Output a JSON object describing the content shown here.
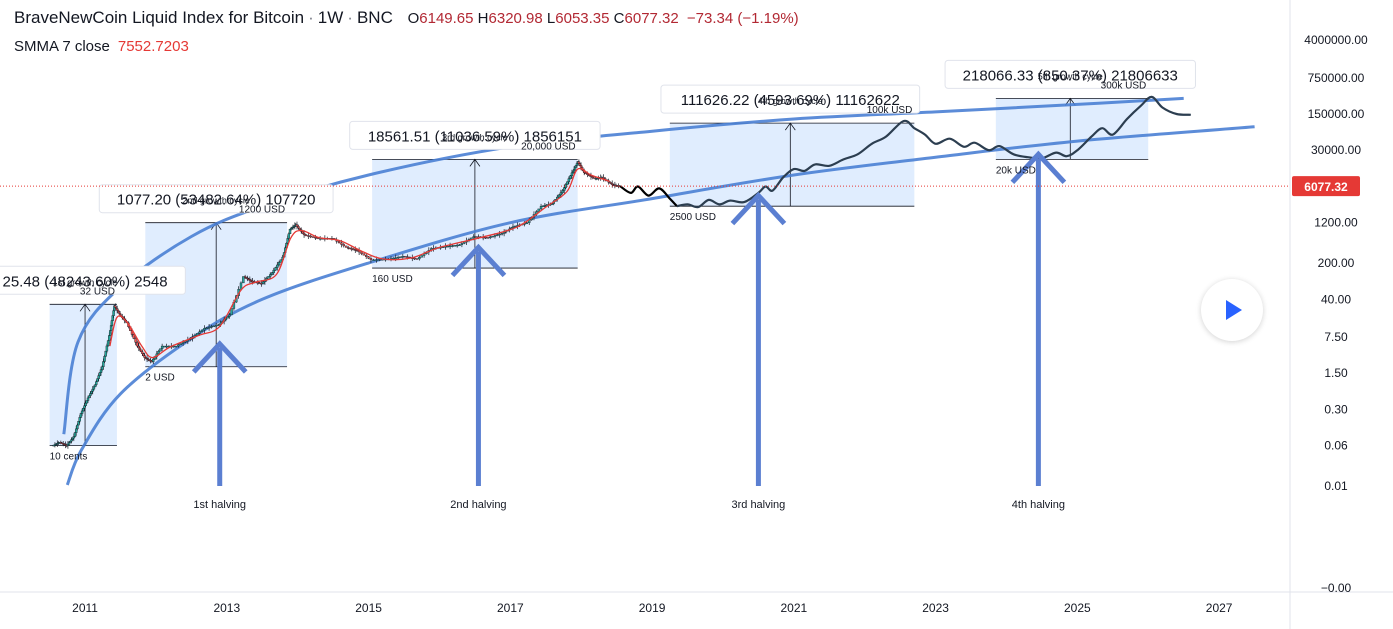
{
  "header": {
    "symbol": "BraveNewCoin Liquid Index for Bitcoin",
    "interval": "1W",
    "exchange": "BNC",
    "open_label": "O",
    "open": "6149.65",
    "high_label": "H",
    "high": "6320.98",
    "low_label": "L",
    "low": "6053.35",
    "close_label": "C",
    "close": "6077.32",
    "change": "−73.34 (−1.19%)"
  },
  "indicator": {
    "name": "SMMA 7 close",
    "value": "7552.7203"
  },
  "colors": {
    "accent_blue": "#4a80d4",
    "candle_up": "#26a69a",
    "candle_down": "#ef5350",
    "smma": "#e53935",
    "box_fill": "#dbeafe",
    "price_tag": "#e53935"
  },
  "play_icon": "play-icon",
  "chart_data": {
    "type": "candlestick",
    "y_scale": "log",
    "x_range": [
      2009.8,
      2028.0
    ],
    "y_axis_labels": [
      "4000000.00",
      "750000.00",
      "150000.00",
      "30000.00",
      "6077.32",
      "1200.00",
      "200.00",
      "40.00",
      "7.50",
      "1.50",
      "0.30",
      "0.06",
      "0.01",
      "−0.00"
    ],
    "y_axis_values": [
      4000000,
      750000,
      150000,
      30000,
      6077.32,
      1200,
      200,
      40,
      7.5,
      1.5,
      0.3,
      0.06,
      0.01,
      0.0001
    ],
    "x_tick_labels": [
      "2011",
      "2013",
      "2015",
      "2017",
      "2019",
      "2021",
      "2023",
      "2025",
      "2027"
    ],
    "x_tick_values": [
      2011,
      2013,
      2015,
      2017,
      2019,
      2021,
      2023,
      2025,
      2027
    ],
    "current_price": 6077.32,
    "current_price_label": "6077.32",
    "price_path": [
      [
        2010.55,
        0.06
      ],
      [
        2010.65,
        0.07
      ],
      [
        2010.75,
        0.06
      ],
      [
        2010.85,
        0.09
      ],
      [
        2010.95,
        0.25
      ],
      [
        2011.05,
        0.5
      ],
      [
        2011.15,
        0.9
      ],
      [
        2011.25,
        2
      ],
      [
        2011.35,
        8
      ],
      [
        2011.42,
        30
      ],
      [
        2011.5,
        20
      ],
      [
        2011.6,
        14
      ],
      [
        2011.75,
        5
      ],
      [
        2011.85,
        3
      ],
      [
        2011.95,
        2.5
      ],
      [
        2012.1,
        5
      ],
      [
        2012.3,
        5
      ],
      [
        2012.5,
        7
      ],
      [
        2012.7,
        11
      ],
      [
        2012.9,
        13
      ],
      [
        2013.05,
        20
      ],
      [
        2013.25,
        110
      ],
      [
        2013.35,
        90
      ],
      [
        2013.5,
        80
      ],
      [
        2013.65,
        130
      ],
      [
        2013.8,
        260
      ],
      [
        2013.9,
        900
      ],
      [
        2013.98,
        1100
      ],
      [
        2014.1,
        700
      ],
      [
        2014.3,
        600
      ],
      [
        2014.5,
        600
      ],
      [
        2014.7,
        400
      ],
      [
        2014.85,
        350
      ],
      [
        2015.05,
        230
      ],
      [
        2015.3,
        240
      ],
      [
        2015.5,
        270
      ],
      [
        2015.7,
        240
      ],
      [
        2015.9,
        380
      ],
      [
        2016.1,
        420
      ],
      [
        2016.3,
        450
      ],
      [
        2016.5,
        650
      ],
      [
        2016.7,
        620
      ],
      [
        2016.9,
        750
      ],
      [
        2017.05,
        1000
      ],
      [
        2017.25,
        1200
      ],
      [
        2017.45,
        2500
      ],
      [
        2017.6,
        2800
      ],
      [
        2017.75,
        5000
      ],
      [
        2017.88,
        11000
      ],
      [
        2017.96,
        18000
      ],
      [
        2018.05,
        11000
      ],
      [
        2018.2,
        8500
      ],
      [
        2018.3,
        9000
      ],
      [
        2018.45,
        6500
      ],
      [
        2018.55,
        6077.32
      ]
    ],
    "smma_path": [
      [
        2011.35,
        5
      ],
      [
        2011.45,
        18
      ],
      [
        2011.6,
        14
      ],
      [
        2011.8,
        5
      ],
      [
        2011.95,
        3
      ],
      [
        2012.2,
        4.8
      ],
      [
        2012.6,
        8
      ],
      [
        2012.9,
        12
      ],
      [
        2013.2,
        60
      ],
      [
        2013.4,
        85
      ],
      [
        2013.7,
        120
      ],
      [
        2013.9,
        600
      ],
      [
        2014.05,
        850
      ],
      [
        2014.3,
        620
      ],
      [
        2014.6,
        540
      ],
      [
        2014.9,
        340
      ],
      [
        2015.2,
        240
      ],
      [
        2015.6,
        250
      ],
      [
        2016.0,
        400
      ],
      [
        2016.6,
        630
      ],
      [
        2017.1,
        1000
      ],
      [
        2017.5,
        2400
      ],
      [
        2017.8,
        4800
      ],
      [
        2017.95,
        13000
      ],
      [
        2018.15,
        9800
      ],
      [
        2018.4,
        7552.72
      ]
    ],
    "projection_path": [
      [
        2018.55,
        6077.32
      ],
      [
        2018.7,
        4500
      ],
      [
        2018.8,
        6000
      ],
      [
        2018.95,
        4000
      ],
      [
        2019.1,
        5500
      ],
      [
        2019.25,
        3500
      ],
      [
        2019.35,
        2500
      ],
      [
        2019.5,
        2700
      ],
      [
        2019.65,
        2400
      ],
      [
        2019.8,
        3300
      ],
      [
        2019.95,
        2700
      ],
      [
        2020.1,
        3200
      ],
      [
        2020.3,
        3000
      ],
      [
        2020.5,
        4500
      ],
      [
        2020.6,
        6000
      ],
      [
        2020.7,
        5000
      ],
      [
        2020.85,
        9000
      ],
      [
        2021.0,
        13000
      ],
      [
        2021.15,
        12000
      ],
      [
        2021.3,
        16000
      ],
      [
        2021.5,
        15000
      ],
      [
        2021.7,
        20000
      ],
      [
        2021.9,
        25000
      ],
      [
        2022.1,
        40000
      ],
      [
        2022.3,
        55000
      ],
      [
        2022.55,
        110000
      ],
      [
        2022.7,
        80000
      ],
      [
        2022.85,
        60000
      ],
      [
        2023.0,
        40000
      ],
      [
        2023.2,
        50000
      ],
      [
        2023.4,
        35000
      ],
      [
        2023.55,
        42000
      ],
      [
        2023.75,
        30000
      ],
      [
        2023.9,
        36000
      ],
      [
        2024.1,
        25000
      ],
      [
        2024.3,
        22000
      ],
      [
        2024.5,
        21000
      ],
      [
        2024.7,
        27000
      ],
      [
        2024.85,
        23000
      ],
      [
        2025.0,
        30000
      ],
      [
        2025.2,
        55000
      ],
      [
        2025.35,
        80000
      ],
      [
        2025.5,
        60000
      ],
      [
        2025.7,
        120000
      ],
      [
        2025.9,
        220000
      ],
      [
        2026.05,
        320000
      ],
      [
        2026.2,
        200000
      ],
      [
        2026.4,
        150000
      ],
      [
        2026.6,
        145000
      ]
    ],
    "projection_gray_segment": [
      2018.55,
      2019.35
    ],
    "upper_channel": [
      [
        2010.7,
        0.1
      ],
      [
        2010.9,
        6
      ],
      [
        2011.5,
        70
      ],
      [
        2012.5,
        650
      ],
      [
        2013.5,
        2500
      ],
      [
        2015,
        10000
      ],
      [
        2017,
        35000
      ],
      [
        2019,
        70000
      ],
      [
        2021,
        120000
      ],
      [
        2023,
        165000
      ],
      [
        2025,
        230000
      ],
      [
        2026.5,
        300000
      ]
    ],
    "lower_channel": [
      [
        2010.75,
        0.0105
      ],
      [
        2010.95,
        0.05
      ],
      [
        2011.5,
        0.6
      ],
      [
        2012.5,
        7
      ],
      [
        2013.5,
        40
      ],
      [
        2015,
        200
      ],
      [
        2017,
        1200
      ],
      [
        2019,
        3500
      ],
      [
        2021,
        10000
      ],
      [
        2023,
        22000
      ],
      [
        2025,
        45000
      ],
      [
        2027.5,
        85000
      ]
    ],
    "boxes": [
      {
        "x0": 2010.5,
        "x1": 2011.45,
        "y_low": 0.06,
        "y_high": 32,
        "measure_x": 2011.0,
        "label": "25.48 (48243.60%) 2548",
        "bottom_label": "10 cents",
        "top_label": "32 USD",
        "cycle_label": "1st growth cycle"
      },
      {
        "x0": 2011.85,
        "x1": 2013.85,
        "y_low": 2,
        "y_high": 1200,
        "measure_x": 2012.85,
        "label": "1077.20 (53482.64%) 107720",
        "bottom_label": "2 USD",
        "top_label": "1200 USD",
        "cycle_label": "2nd growth cycle"
      },
      {
        "x0": 2015.05,
        "x1": 2017.95,
        "y_low": 160,
        "y_high": 20000,
        "measure_x": 2016.5,
        "label": "18561.51 (11036.59%) 1856151",
        "bottom_label": "160 USD",
        "top_label": "20,000 USD",
        "cycle_label": "3rd growth cycle"
      },
      {
        "x0": 2019.25,
        "x1": 2022.7,
        "y_low": 2500,
        "y_high": 100000,
        "measure_x": 2020.95,
        "label": "111626.22 (4593.69%) 11162622",
        "bottom_label": "2500 USD",
        "top_label": "100k USD",
        "cycle_label": "4th growth cycle"
      },
      {
        "x0": 2023.85,
        "x1": 2026.0,
        "y_low": 20000,
        "y_high": 300000,
        "measure_x": 2024.9,
        "label": "218066.33 (850.37%) 21806633",
        "bottom_label": "20k USD",
        "top_label": "300k USD",
        "cycle_label": "5th growth cycle"
      }
    ],
    "halvings": [
      {
        "x": 2012.9,
        "label": "1st halving",
        "tip_y": 5.5
      },
      {
        "x": 2016.55,
        "label": "2nd halving",
        "tip_y": 400
      },
      {
        "x": 2020.5,
        "label": "3rd halving",
        "tip_y": 4000
      },
      {
        "x": 2024.45,
        "label": "4th halving",
        "tip_y": 25000
      }
    ]
  }
}
